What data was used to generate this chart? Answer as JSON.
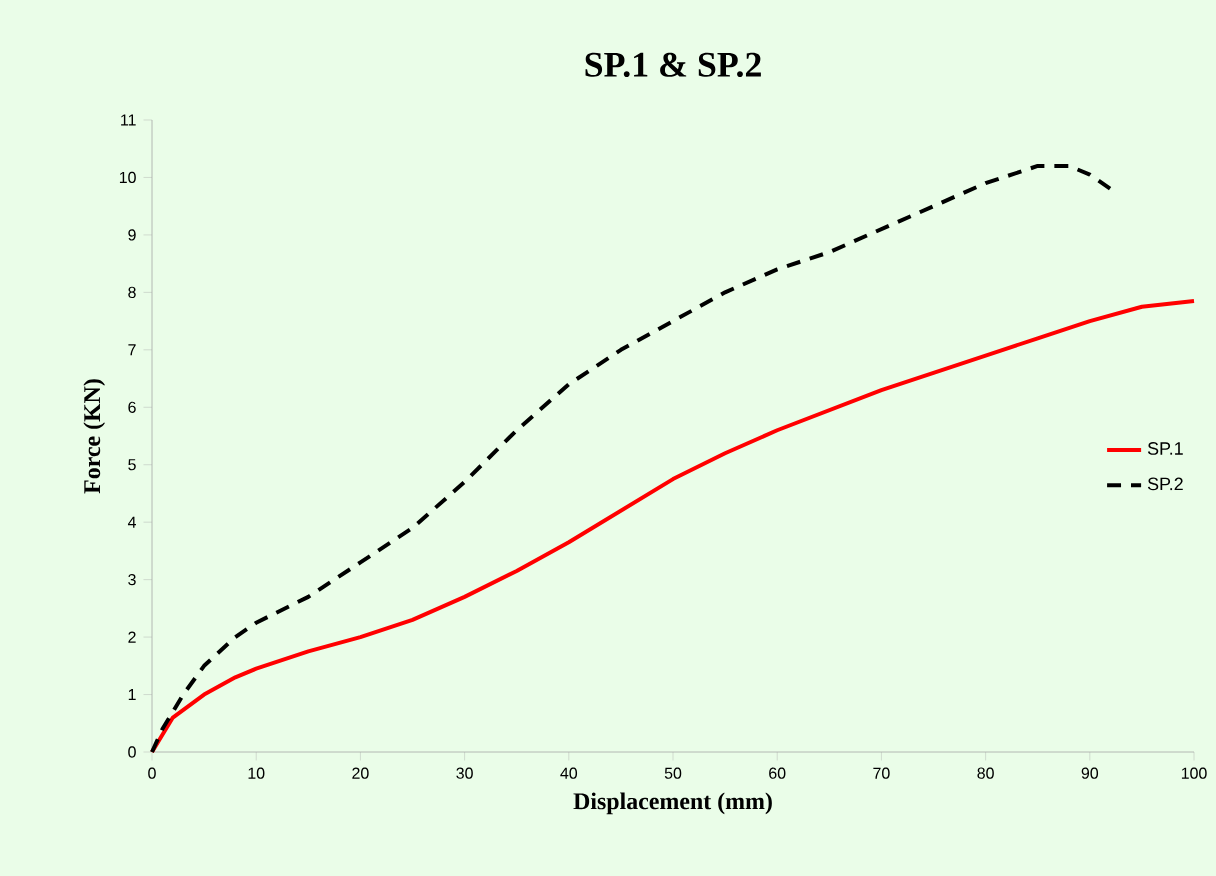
{
  "chart_data": {
    "type": "line",
    "title": "SP.1 & SP.2",
    "xlabel": "Displacement (mm)",
    "ylabel": "Force (KN)",
    "xlim": [
      0,
      100
    ],
    "xticks": [
      0,
      10,
      20,
      30,
      40,
      50,
      60,
      70,
      80,
      90,
      100
    ],
    "ylim": [
      0,
      11
    ],
    "yticks": [
      0,
      1,
      2,
      3,
      4,
      5,
      6,
      7,
      8,
      9,
      10,
      11
    ],
    "legend": "right",
    "grid": false,
    "marker": "none",
    "series": [
      {
        "name": "SP.1",
        "color": "#ff0000",
        "line_style": "solid",
        "x": [
          0,
          2,
          5,
          8,
          10,
          15,
          20,
          25,
          30,
          35,
          40,
          45,
          50,
          55,
          60,
          65,
          70,
          75,
          80,
          85,
          90,
          95,
          100
        ],
        "values": [
          0,
          0.6,
          1.0,
          1.3,
          1.45,
          1.75,
          2.0,
          2.3,
          2.7,
          3.15,
          3.65,
          4.2,
          4.75,
          5.2,
          5.6,
          5.95,
          6.3,
          6.6,
          6.9,
          7.2,
          7.5,
          7.75,
          7.85
        ]
      },
      {
        "name": "SP.2",
        "color": "#000000",
        "line_style": "dashed",
        "x": [
          0,
          1,
          3,
          5,
          8,
          10,
          15,
          20,
          25,
          30,
          35,
          40,
          45,
          50,
          55,
          60,
          65,
          70,
          75,
          80,
          85,
          88,
          90,
          92
        ],
        "values": [
          0,
          0.4,
          1.0,
          1.5,
          2.0,
          2.25,
          2.7,
          3.3,
          3.9,
          4.7,
          5.6,
          6.4,
          7.0,
          7.5,
          8.0,
          8.4,
          8.7,
          9.1,
          9.5,
          9.9,
          10.2,
          10.2,
          10.05,
          9.8
        ]
      }
    ]
  }
}
